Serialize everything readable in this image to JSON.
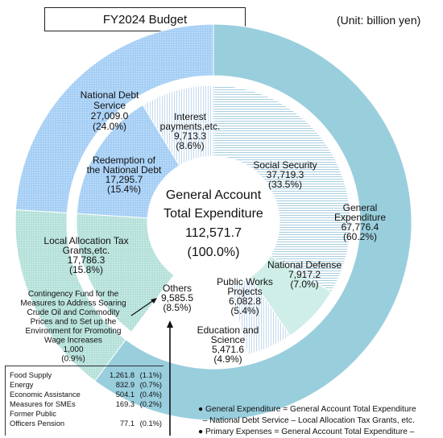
{
  "header": {
    "title": "FY2024 Budget",
    "unit": "(Unit: billion yen)"
  },
  "chart_data": {
    "type": "pie",
    "title": "FY2024 Budget",
    "center": {
      "line1": "General Account",
      "line2": "Total Expenditure",
      "value": "112,571.7",
      "percent": "(100.0%)"
    },
    "outer_ring": [
      {
        "name": "General Expenditure",
        "value": 67776.4,
        "value_label": "67,776.4",
        "percent_label": "(60.2%)",
        "color": "#99cedd"
      },
      {
        "name": "Local Allocation Tax Grants,etc.",
        "value": 17786.3,
        "value_label": "17,786.3",
        "percent_label": "(15.8%)",
        "color": "#b5e1da"
      },
      {
        "name": "National Debt Service",
        "value": 27009.0,
        "value_label": "27,009.0",
        "percent_label": "(24.0%)",
        "color": "#a6cff5"
      }
    ],
    "inner_ring": [
      {
        "name": "Social Security",
        "value": 37719.3,
        "value_label": "37,719.3",
        "percent_label": "(33.5%)",
        "color": "#c2dcea"
      },
      {
        "name": "National Defense",
        "value": 7917.2,
        "value_label": "7,917.2",
        "percent_label": "(7.0%)",
        "color": "#c9ece7"
      },
      {
        "name": "Public Works Projects",
        "value": 6082.8,
        "value_label": "6,082.8",
        "percent_label": "(5.4%)",
        "color": "#eaf6fb"
      },
      {
        "name": "Education and Science",
        "value": 5471.6,
        "value_label": "5,471.6",
        "percent_label": "(4.9%)",
        "color": "#ffffff"
      },
      {
        "name": "Others",
        "value": 9585.5,
        "value_label": "9,585.5",
        "percent_label": "(8.5%)",
        "color": "#ffffff"
      },
      {
        "name": "Contingency Fund for the Measures to Address Soaring Crude Oil and Commodity Prices and to Set up the Environment for Promoting Wage Increases",
        "value": 1000,
        "value_label": "1,000",
        "percent_label": "(0.9%)",
        "color": "#ffffff"
      },
      {
        "name": "Local Allocation Tax Grants,etc.",
        "value": 17786.3,
        "value_label": "17,786.3",
        "percent_label": "(15.8%)",
        "color": "#d3ede8"
      },
      {
        "name": "Redemption of the National Debt",
        "value": 17295.7,
        "value_label": "17,295.7",
        "percent_label": "(15.4%)",
        "color": "#d1e6fa"
      },
      {
        "name": "Interest payments,etc.",
        "value": 9713.3,
        "value_label": "9,713.3",
        "percent_label": "(8.6%)",
        "color": "#ebf3fc"
      }
    ],
    "labels": {
      "national_debt": [
        "National Debt",
        "Service",
        "27,009.0",
        "(24.0%)"
      ],
      "interest": [
        "Interest",
        "payments,etc.",
        "9,713.3",
        "(8.6%)"
      ],
      "redemption": [
        "Redemption of",
        "the National Debt",
        "17,295.7",
        "(15.4%)"
      ],
      "social": [
        "Social Security",
        "37,719.3",
        "(33.5%)"
      ],
      "general": [
        "General",
        "Expenditure",
        "67,776.4",
        "(60.2%)"
      ],
      "local": [
        "Local Allocation Tax",
        "Grants,etc.",
        "17,786.3",
        "(15.8%)"
      ],
      "defense": [
        "National Defense",
        "7,917.2",
        "(7.0%)"
      ],
      "public": [
        "Public Works",
        "Projects",
        "6,082.8",
        "(5.4%)"
      ],
      "others": [
        "Others",
        "9,585.5",
        "(8.5%)"
      ],
      "education": [
        "Education and",
        "Science",
        "5,471.6",
        "(4.9%)"
      ],
      "contingency": [
        "Contingency Fund for the",
        "Measures to Address Soaring",
        "Crude Oil and Commodity",
        "Prices and to Set up the",
        "Environment for Promoting",
        "Wage Increases",
        "1,000",
        "(0.9%)"
      ]
    },
    "others_breakdown": [
      {
        "name": "Food Supply",
        "value": "1,261.8",
        "percent": "(1.1%)"
      },
      {
        "name": "Energy",
        "value": "832.9",
        "percent": "(0.7%)"
      },
      {
        "name": "Economic Assistance",
        "value": "504.1",
        "percent": "(0.4%)"
      },
      {
        "name": "Measures for SMEs",
        "value": "169.3",
        "percent": "(0.2%)"
      },
      {
        "name": "Former Public",
        "value": "",
        "percent": ""
      },
      {
        "name": "Officers Pension",
        "value": "77.1",
        "percent": "(0.1%)"
      }
    ]
  },
  "notes": [
    "● General Expenditure = General Account Total Expenditure",
    "  – National Debt Service – Local Allocation Tax Grants, etc.",
    "● Primary Expenses = General Account Total Expenditure –"
  ]
}
